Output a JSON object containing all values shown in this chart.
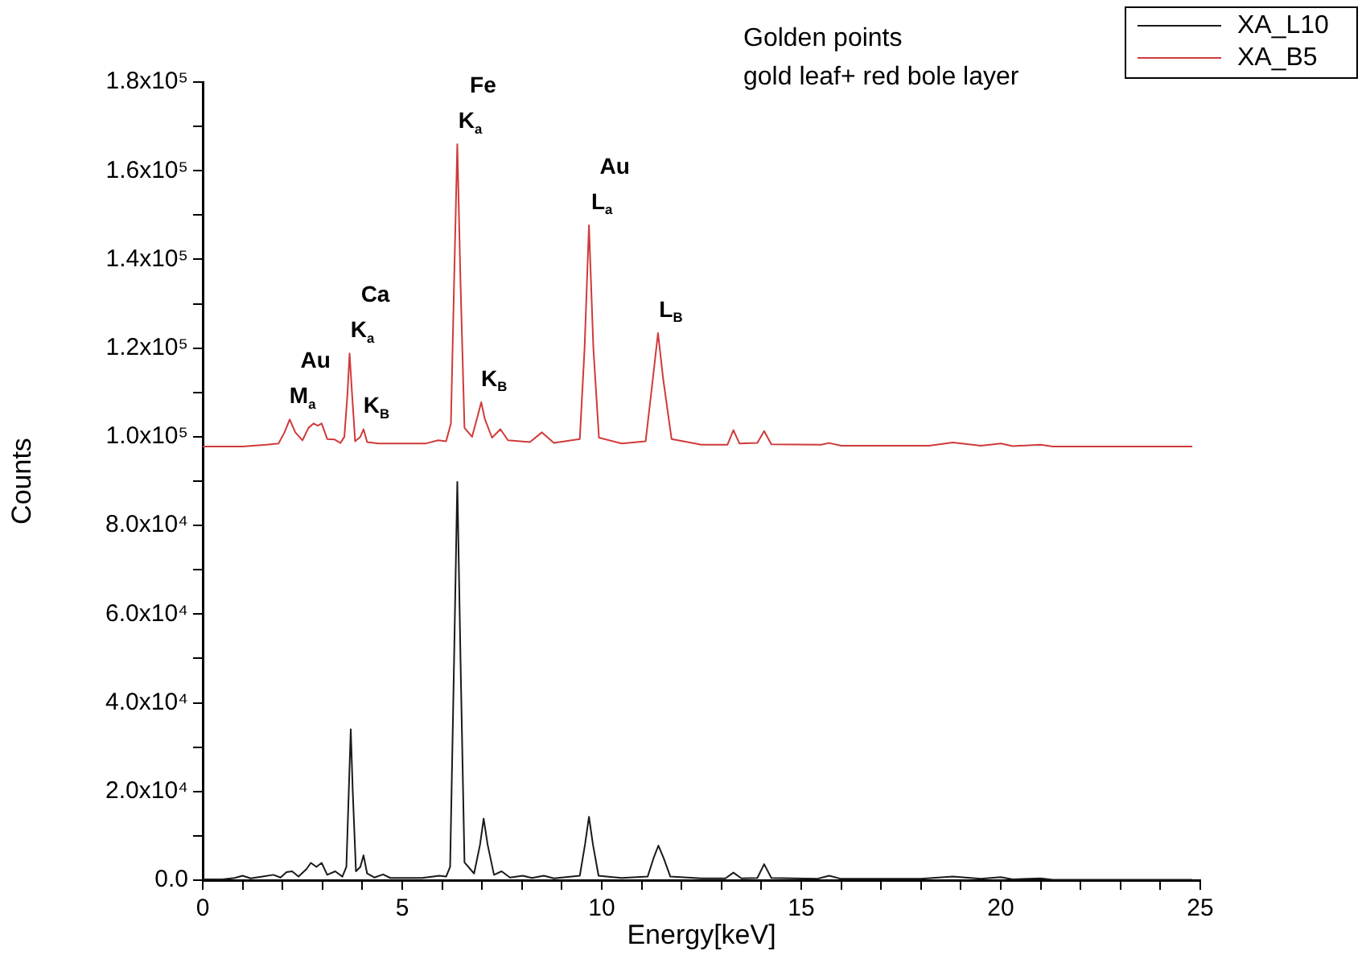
{
  "chart_data": {
    "type": "line",
    "title": "Golden points",
    "subtitle": "gold leaf+ red bole layer",
    "xlabel": "Energy[keV]",
    "ylabel": "Counts",
    "legend": "top right",
    "marker": "none",
    "line_style": "solid",
    "xlim": [
      0,
      25
    ],
    "ylim": [
      0,
      180000
    ],
    "xticks": [
      0,
      {
        "value": 1,
        "label": null
      },
      {
        "value": 2,
        "label": null
      },
      {
        "value": 3,
        "label": null
      },
      {
        "value": 4,
        "label": null
      },
      5,
      {
        "value": 6,
        "label": null
      },
      {
        "value": 7,
        "label": null
      },
      {
        "value": 8,
        "label": null
      },
      {
        "value": 9,
        "label": null
      },
      10,
      {
        "value": 11,
        "label": null
      },
      {
        "value": 12,
        "label": null
      },
      {
        "value": 13,
        "label": null
      },
      {
        "value": 14,
        "label": null
      },
      15,
      {
        "value": 16,
        "label": null
      },
      {
        "value": 17,
        "label": null
      },
      {
        "value": 18,
        "label": null
      },
      {
        "value": 19,
        "label": null
      },
      20,
      {
        "value": 21,
        "label": null
      },
      {
        "value": 22,
        "label": null
      },
      {
        "value": 23,
        "label": null
      },
      {
        "value": 24,
        "label": null
      },
      25
    ],
    "yticks": [
      {
        "value": 0,
        "label": "0.0"
      },
      {
        "value": 10000,
        "label": null
      },
      {
        "value": 20000,
        "label": "2.0x10⁴"
      },
      {
        "value": 30000,
        "label": null
      },
      {
        "value": 40000,
        "label": "4.0x10⁴"
      },
      {
        "value": 50000,
        "label": null
      },
      {
        "value": 60000,
        "label": "6.0x10⁴"
      },
      {
        "value": 70000,
        "label": null
      },
      {
        "value": 80000,
        "label": "8.0x10⁴"
      },
      {
        "value": 90000,
        "label": null
      },
      {
        "value": 100000,
        "label": "1.0x10⁵"
      },
      {
        "value": 110000,
        "label": null
      },
      {
        "value": 120000,
        "label": "1.2x10⁵"
      },
      {
        "value": 130000,
        "label": null
      },
      {
        "value": 140000,
        "label": "1.4x10⁵"
      },
      {
        "value": 150000,
        "label": null
      },
      {
        "value": 160000,
        "label": "1.6x10⁵"
      },
      {
        "value": 170000,
        "label": null
      },
      {
        "value": 180000,
        "label": "1.8x10⁵"
      }
    ],
    "series": [
      {
        "name": "XA_L10",
        "color": "#1a1a1a",
        "x": [
          0,
          0.5,
          0.8,
          1.0,
          1.2,
          1.5,
          1.77,
          1.95,
          2.1,
          2.24,
          2.4,
          2.6,
          2.71,
          2.85,
          2.98,
          3.12,
          3.32,
          3.5,
          3.6,
          3.66,
          3.71,
          3.76,
          3.84,
          3.95,
          4.03,
          4.12,
          4.3,
          4.52,
          4.7,
          5.5,
          5.93,
          6.1,
          6.2,
          6.3,
          6.38,
          6.46,
          6.56,
          6.8,
          6.95,
          7.04,
          7.14,
          7.3,
          7.49,
          7.7,
          8.02,
          8.25,
          8.55,
          8.8,
          9.45,
          9.58,
          9.68,
          9.78,
          9.92,
          10.5,
          11.15,
          11.3,
          11.42,
          11.55,
          11.72,
          12.5,
          13.1,
          13.3,
          13.5,
          13.9,
          14.07,
          14.25,
          15.4,
          15.7,
          16.0,
          18.0,
          18.8,
          19.5,
          20.0,
          20.3,
          21.0,
          21.3,
          24.8
        ],
        "values": [
          200,
          200,
          500,
          1000,
          400,
          800,
          1200,
          600,
          1800,
          2000,
          800,
          2500,
          3900,
          3000,
          3900,
          1200,
          2000,
          800,
          3000,
          20000,
          34000,
          20000,
          2000,
          3000,
          5600,
          1500,
          600,
          1300,
          500,
          500,
          1000,
          800,
          3000,
          50000,
          89800,
          50000,
          4000,
          1500,
          8000,
          13900,
          8000,
          1200,
          2000,
          600,
          1000,
          500,
          1000,
          400,
          1000,
          8000,
          14300,
          8000,
          1000,
          500,
          800,
          5000,
          7800,
          5000,
          800,
          400,
          400,
          1700,
          400,
          500,
          3600,
          500,
          300,
          1000,
          300,
          300,
          800,
          300,
          700,
          200,
          400,
          100,
          100
        ]
      },
      {
        "name": "XA_B5",
        "color": "#d03a3a",
        "x": [
          0,
          1.0,
          1.6,
          1.9,
          2.05,
          2.18,
          2.32,
          2.5,
          2.65,
          2.78,
          2.88,
          2.98,
          3.12,
          3.3,
          3.45,
          3.55,
          3.63,
          3.68,
          3.74,
          3.82,
          3.95,
          4.03,
          4.12,
          4.4,
          5.6,
          5.9,
          6.1,
          6.22,
          6.3,
          6.38,
          6.46,
          6.56,
          6.75,
          6.9,
          6.98,
          7.07,
          7.25,
          7.46,
          7.65,
          8.2,
          8.5,
          8.8,
          9.45,
          9.57,
          9.68,
          9.79,
          9.93,
          10.5,
          11.1,
          11.28,
          11.41,
          11.54,
          11.75,
          12.5,
          13.15,
          13.3,
          13.45,
          13.9,
          14.07,
          14.25,
          15.5,
          15.7,
          16.0,
          18.2,
          18.8,
          19.5,
          20.0,
          20.3,
          21.0,
          21.3,
          24.8
        ],
        "values": [
          97800,
          97800,
          98200,
          98500,
          101000,
          103900,
          101000,
          99200,
          102000,
          103000,
          102500,
          103000,
          99500,
          99400,
          98600,
          100000,
          110000,
          118800,
          110000,
          99000,
          100000,
          101700,
          98800,
          98500,
          98500,
          99200,
          99000,
          103000,
          135000,
          166000,
          135000,
          102000,
          100000,
          105000,
          107800,
          104000,
          99800,
          101700,
          99200,
          98800,
          101000,
          98600,
          99500,
          120000,
          147700,
          120000,
          99800,
          98500,
          99000,
          113000,
          123400,
          113000,
          99500,
          98200,
          98200,
          101500,
          98500,
          98600,
          101300,
          98300,
          98200,
          98600,
          98000,
          98000,
          98700,
          98000,
          98500,
          97900,
          98200,
          97800,
          97800
        ]
      }
    ],
    "annotations": [
      {
        "text": "Au",
        "x": 2.18,
        "y": 103900
      },
      {
        "text": "M$_{a}$",
        "x": 2.18,
        "y": 103900
      },
      {
        "text": "Ca",
        "x": 3.68,
        "y": 118800
      },
      {
        "text": "K$_{a}$",
        "x": 3.68,
        "y": 118800
      },
      {
        "text": "K$_{B}$",
        "x": 4.03,
        "y": 101700
      },
      {
        "text": "Fe",
        "x": 6.38,
        "y": 166000
      },
      {
        "text": "K$_{a}$",
        "x": 6.38,
        "y": 166000
      },
      {
        "text": "K$_{B}$",
        "x": 6.98,
        "y": 107800
      },
      {
        "text": "Au",
        "x": 9.68,
        "y": 147700
      },
      {
        "text": "L$_{a}$",
        "x": 9.68,
        "y": 147700
      },
      {
        "text": "L$_{B}$",
        "x": 11.41,
        "y": 123400
      }
    ]
  }
}
